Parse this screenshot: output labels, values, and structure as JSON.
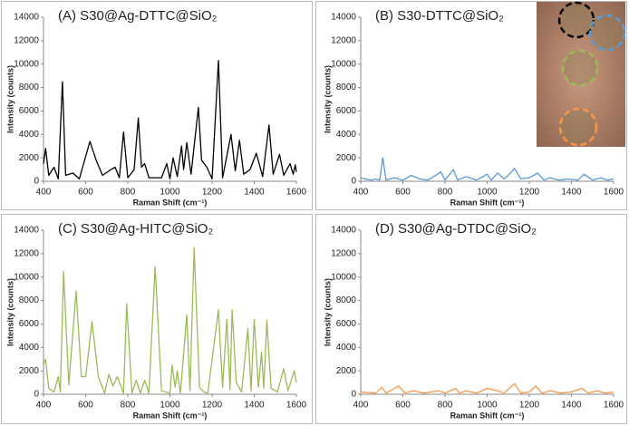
{
  "chart_data": [
    {
      "type": "line",
      "title": "(A) S30@Ag-DTTC@SiO₂",
      "x_label": "Raman Shift (cm⁻¹)",
      "y_label": "Intensity (counts)",
      "color": "#000000",
      "xlim": [
        400,
        1600
      ],
      "xticks": [
        400,
        600,
        800,
        1000,
        1200,
        1400,
        1600
      ],
      "ylim": [
        0,
        14000
      ],
      "yticks": [
        0,
        2000,
        4000,
        6000,
        8000,
        10000,
        12000,
        14000
      ],
      "x": [
        400,
        410,
        425,
        450,
        470,
        490,
        505,
        540,
        570,
        620,
        650,
        680,
        720,
        740,
        760,
        780,
        800,
        830,
        850,
        865,
        880,
        900,
        960,
        985,
        1000,
        1015,
        1035,
        1055,
        1065,
        1080,
        1100,
        1135,
        1150,
        1175,
        1200,
        1230,
        1250,
        1290,
        1310,
        1330,
        1350,
        1380,
        1410,
        1440,
        1470,
        1490,
        1520,
        1540,
        1570,
        1585,
        1595,
        1600
      ],
      "values": [
        1500,
        2800,
        500,
        1200,
        200,
        8500,
        500,
        700,
        200,
        3400,
        1800,
        500,
        1000,
        1200,
        300,
        4200,
        300,
        1000,
        5400,
        1200,
        1500,
        300,
        300,
        1500,
        200,
        2000,
        400,
        3000,
        1000,
        3300,
        600,
        6300,
        1800,
        1200,
        200,
        10300,
        300,
        4000,
        900,
        3500,
        600,
        1000,
        2400,
        400,
        4800,
        600,
        2300,
        500,
        1500,
        600,
        1400,
        800
      ]
    },
    {
      "type": "line",
      "title": "(B) S30-DTTC@SiO₂",
      "x_label": "Raman Shift (cm⁻¹)",
      "y_label": "Intensity (counts)",
      "color": "#5b9bd5",
      "xlim": [
        400,
        1600
      ],
      "xticks": [
        400,
        600,
        800,
        1000,
        1200,
        1400,
        1600
      ],
      "ylim": [
        0,
        14000
      ],
      "yticks": [
        0,
        2000,
        4000,
        6000,
        8000,
        10000,
        12000,
        14000
      ],
      "x": [
        400,
        420,
        450,
        470,
        490,
        505,
        520,
        560,
        600,
        640,
        680,
        720,
        780,
        800,
        840,
        860,
        900,
        950,
        1000,
        1020,
        1050,
        1080,
        1100,
        1130,
        1160,
        1200,
        1240,
        1270,
        1300,
        1340,
        1380,
        1430,
        1460,
        1500,
        1540,
        1570,
        1600
      ],
      "values": [
        300,
        200,
        100,
        200,
        100,
        2000,
        100,
        300,
        100,
        500,
        200,
        100,
        800,
        100,
        1000,
        100,
        400,
        100,
        600,
        100,
        700,
        200,
        500,
        1100,
        200,
        300,
        700,
        100,
        300,
        100,
        200,
        100,
        600,
        100,
        300,
        100,
        200
      ]
    },
    {
      "type": "line",
      "title": "(C) S30@Ag-HITC@SiO₂",
      "x_label": "Raman Shift (cm⁻¹)",
      "y_label": "Intensity (counts)",
      "color": "#9bbb59",
      "xlim": [
        400,
        1600
      ],
      "xticks": [
        400,
        600,
        800,
        1000,
        1200,
        1400,
        1600
      ],
      "ylim": [
        0,
        14000
      ],
      "yticks": [
        0,
        2000,
        4000,
        6000,
        8000,
        10000,
        12000,
        14000
      ],
      "x": [
        400,
        410,
        425,
        450,
        470,
        480,
        495,
        520,
        555,
        580,
        600,
        630,
        660,
        690,
        710,
        730,
        750,
        780,
        795,
        820,
        840,
        860,
        880,
        900,
        930,
        960,
        1000,
        1010,
        1025,
        1035,
        1050,
        1080,
        1095,
        1115,
        1140,
        1160,
        1180,
        1230,
        1250,
        1270,
        1285,
        1295,
        1315,
        1340,
        1370,
        1385,
        1400,
        1420,
        1435,
        1445,
        1460,
        1480,
        1510,
        1540,
        1560,
        1590,
        1600
      ],
      "values": [
        2500,
        3000,
        500,
        200,
        1500,
        200,
        10500,
        800,
        8800,
        1500,
        1500,
        6200,
        1500,
        100,
        1700,
        700,
        1500,
        100,
        7700,
        100,
        1200,
        100,
        1200,
        100,
        10900,
        300,
        100,
        2500,
        600,
        2000,
        100,
        6800,
        300,
        12500,
        600,
        200,
        100,
        7200,
        600,
        6400,
        400,
        7200,
        1000,
        200,
        5600,
        300,
        6400,
        600,
        3600,
        500,
        6300,
        500,
        200,
        2200,
        300,
        2000,
        1000
      ]
    },
    {
      "type": "line",
      "title": "(D) S30@Ag-DTDC@SiO₂",
      "x_label": "Raman Shift (cm⁻¹)",
      "y_label": "Intensity (counts)",
      "color": "#f79646",
      "xlim": [
        400,
        1600
      ],
      "xticks": [
        400,
        600,
        800,
        1000,
        1200,
        1400,
        1600
      ],
      "ylim": [
        0,
        14000
      ],
      "yticks": [
        0,
        2000,
        4000,
        6000,
        8000,
        10000,
        12000,
        14000
      ],
      "x": [
        400,
        470,
        500,
        520,
        580,
        610,
        650,
        700,
        770,
        800,
        850,
        870,
        900,
        950,
        1000,
        1050,
        1080,
        1130,
        1160,
        1200,
        1230,
        1260,
        1300,
        1350,
        1400,
        1450,
        1480,
        1520,
        1560,
        1600
      ],
      "values": [
        200,
        100,
        600,
        100,
        700,
        100,
        300,
        100,
        300,
        100,
        500,
        100,
        300,
        100,
        500,
        300,
        100,
        900,
        100,
        200,
        700,
        100,
        300,
        100,
        200,
        500,
        100,
        300,
        100,
        200
      ]
    }
  ]
}
